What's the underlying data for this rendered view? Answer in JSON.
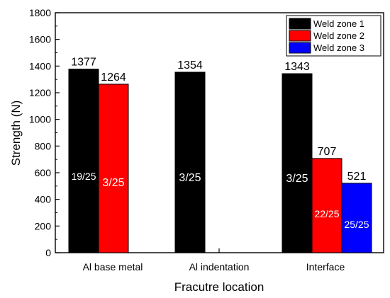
{
  "chart_data": {
    "type": "bar",
    "categories": [
      "Al base metal",
      "Al indentation",
      "Interface"
    ],
    "series": [
      {
        "name": "Weld zone 1",
        "color": "#000000",
        "values": [
          1377,
          1354,
          1343
        ],
        "inner_labels": [
          "19/25",
          "3/25",
          "3/25"
        ]
      },
      {
        "name": "Weld zone 2",
        "color": "#ff0000",
        "values": [
          1264,
          null,
          707
        ],
        "inner_labels": [
          "3/25",
          null,
          "22/25"
        ]
      },
      {
        "name": "Weld zone 3",
        "color": "#0000ff",
        "values": [
          null,
          null,
          521
        ],
        "inner_labels": [
          null,
          null,
          "25/25"
        ]
      }
    ],
    "xlabel": "Fracutre location",
    "ylabel": "Strength (N)",
    "ylim": [
      0,
      1800
    ],
    "yticks": [
      0,
      200,
      400,
      600,
      800,
      1000,
      1200,
      1400,
      1600,
      1800
    ],
    "legend_position": "top-right",
    "grid": false
  }
}
